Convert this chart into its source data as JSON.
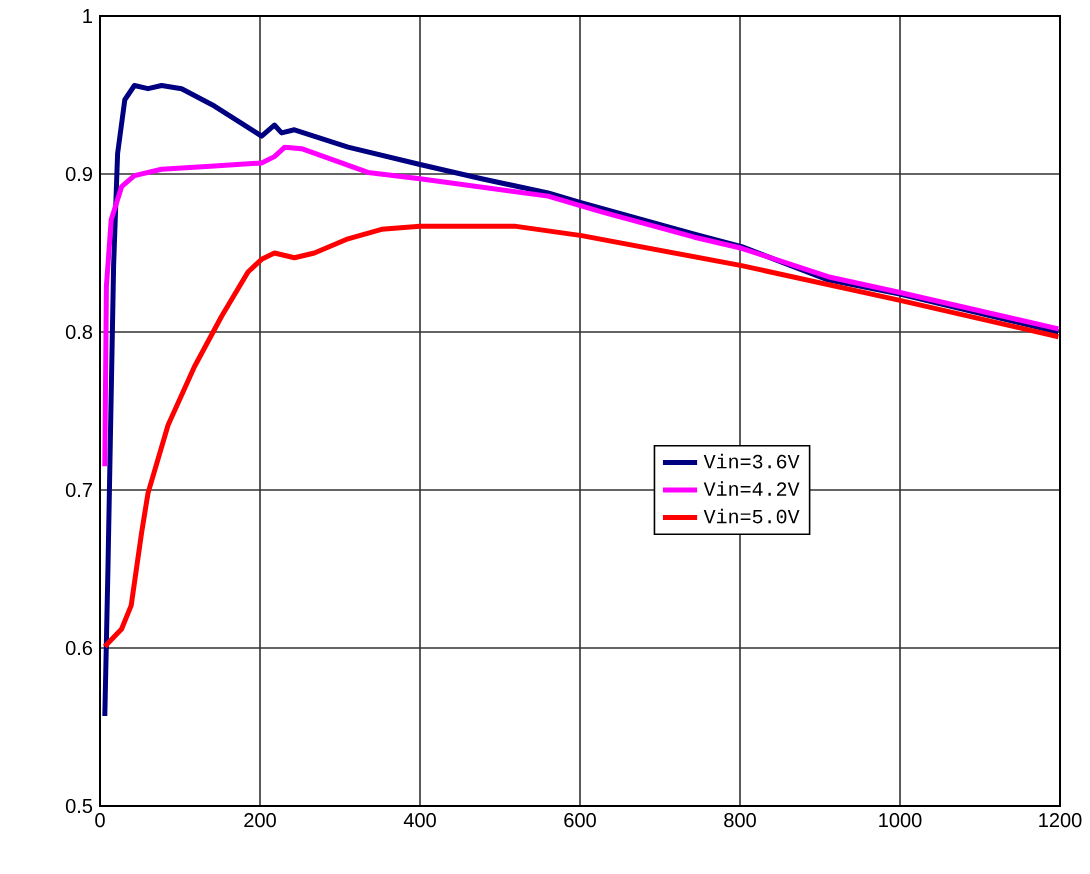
{
  "chart_data": {
    "type": "line",
    "xlim": [
      0,
      1200
    ],
    "ylim": [
      0.5,
      1
    ],
    "xticks": [
      0,
      200,
      400,
      600,
      800,
      1000,
      1200
    ],
    "yticks": [
      0.5,
      0.6,
      0.7,
      0.8,
      0.9,
      1
    ],
    "grid": true,
    "legend": "center right",
    "marker": "none",
    "line_style": "solid",
    "series": [
      {
        "name": "Vin=3.6V",
        "color": "#000080",
        "x": [
          6,
          10,
          17,
          22,
          31,
          43,
          60,
          77,
          102,
          143,
          202,
          218,
          227,
          243,
          310,
          400,
          477,
          560,
          600,
          743,
          802,
          910,
          1000,
          1198
        ],
        "values": [
          0.557,
          0.652,
          0.842,
          0.913,
          0.947,
          0.956,
          0.954,
          0.956,
          0.954,
          0.943,
          0.924,
          0.931,
          0.926,
          0.928,
          0.917,
          0.906,
          0.897,
          0.888,
          0.882,
          0.862,
          0.854,
          0.833,
          0.824,
          0.8
        ]
      },
      {
        "name": "Vin=4.2V",
        "color": "#ff00ff",
        "x": [
          6,
          8,
          14,
          27,
          43,
          77,
          143,
          202,
          218,
          231,
          252,
          335,
          400,
          560,
          627,
          743,
          802,
          910,
          1000,
          1198
        ],
        "values": [
          0.715,
          0.829,
          0.871,
          0.892,
          0.899,
          0.903,
          0.905,
          0.907,
          0.911,
          0.917,
          0.916,
          0.901,
          0.897,
          0.886,
          0.876,
          0.86,
          0.853,
          0.835,
          0.825,
          0.802
        ]
      },
      {
        "name": "Vin=5.0V",
        "color": "#ff0000",
        "x": [
          6,
          27,
          39,
          52,
          60,
          85,
          118,
          152,
          185,
          202,
          218,
          243,
          268,
          310,
          352,
          400,
          518,
          602,
          802,
          1000,
          1198
        ],
        "values": [
          0.601,
          0.612,
          0.627,
          0.673,
          0.698,
          0.741,
          0.778,
          0.81,
          0.838,
          0.846,
          0.85,
          0.847,
          0.85,
          0.859,
          0.865,
          0.867,
          0.867,
          0.861,
          0.842,
          0.82,
          0.797
        ]
      }
    ]
  }
}
